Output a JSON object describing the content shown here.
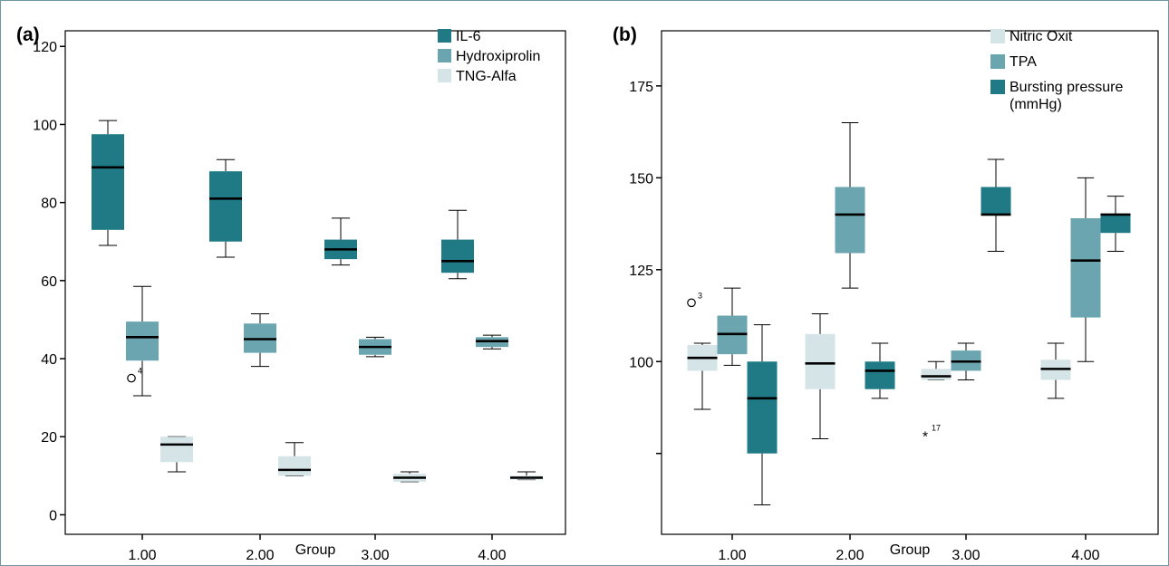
{
  "chart_data": [
    {
      "type": "box",
      "panel_label": "(a)",
      "xlabel": "Group",
      "ylabel": "",
      "ylim": [
        -5,
        124
      ],
      "yticks": [
        0,
        20,
        40,
        60,
        80,
        100,
        120
      ],
      "categories": [
        "1.00",
        "2.00",
        "3.00",
        "4.00"
      ],
      "legend_position": "top-right",
      "series": [
        {
          "name": "IL-6",
          "color": "#1f7a85",
          "boxes": [
            {
              "min": 69,
              "q1": 73,
              "median": 89,
              "q3": 97.5,
              "max": 101
            },
            {
              "min": 66,
              "q1": 70,
              "median": 81,
              "q3": 88,
              "max": 91
            },
            {
              "min": 64,
              "q1": 65.5,
              "median": 68,
              "q3": 70.5,
              "max": 76
            },
            {
              "min": 60.5,
              "q1": 62,
              "median": 65,
              "q3": 70.5,
              "max": 78
            }
          ]
        },
        {
          "name": "Hydroxiprolin",
          "color": "#6ba6b0",
          "boxes": [
            {
              "min": 30.5,
              "q1": 39.5,
              "median": 45.5,
              "q3": 49.5,
              "max": 58.5
            },
            {
              "min": 38,
              "q1": 41.5,
              "median": 45,
              "q3": 49,
              "max": 51.5
            },
            {
              "min": 40.5,
              "q1": 41,
              "median": 43,
              "q3": 45,
              "max": 45.5
            },
            {
              "min": 42.5,
              "q1": 43,
              "median": 44.5,
              "q3": 45.5,
              "max": 46
            }
          ]
        },
        {
          "name": "TNG-Alfa",
          "color": "#d5e4e7",
          "boxes": [
            {
              "min": 11,
              "q1": 13.5,
              "median": 18,
              "q3": 20,
              "max": 20
            },
            {
              "min": 10,
              "q1": 10,
              "median": 11.5,
              "q3": 15,
              "max": 18.5
            },
            {
              "min": 8.5,
              "q1": 8.5,
              "median": 9.5,
              "q3": 10.5,
              "max": 11
            },
            {
              "min": 9,
              "q1": 9,
              "median": 9.5,
              "q3": 10,
              "max": 11
            }
          ]
        }
      ],
      "outliers": [
        {
          "series": "Hydroxiprolin",
          "category": "1.00",
          "value": 35,
          "marker": "circle",
          "label": "4"
        }
      ]
    },
    {
      "type": "box",
      "panel_label": "(b)",
      "xlabel": "Group",
      "ylabel": "",
      "ylim": [
        53,
        190
      ],
      "yticks": [
        75,
        100,
        125,
        150,
        175
      ],
      "ytick_labels": [
        "",
        "100",
        "125",
        "150",
        "175"
      ],
      "categories": [
        "1.00",
        "2.00",
        "3.00",
        "4.00"
      ],
      "legend_position": "top-right",
      "series": [
        {
          "name": "Nitric Oxit",
          "color": "#d5e4e7",
          "boxes": [
            {
              "min": 87,
              "q1": 97.5,
              "median": 101,
              "q3": 104.5,
              "max": 105
            },
            {
              "min": 79,
              "q1": 92.5,
              "median": 99.5,
              "q3": 107.5,
              "max": 113
            },
            {
              "min": 95,
              "q1": 95,
              "median": 96,
              "q3": 98,
              "max": 100
            },
            {
              "min": 90,
              "q1": 95,
              "median": 98,
              "q3": 100.5,
              "max": 105
            }
          ]
        },
        {
          "name": "TPA",
          "color": "#6ba6b0",
          "boxes": [
            {
              "min": 99,
              "q1": 102,
              "median": 107.5,
              "q3": 112.5,
              "max": 120
            },
            {
              "min": 120,
              "q1": 129.5,
              "median": 140,
              "q3": 147.5,
              "max": 165
            },
            {
              "min": 95,
              "q1": 97.5,
              "median": 100,
              "q3": 103,
              "max": 105
            },
            {
              "min": 100,
              "q1": 112,
              "median": 127.5,
              "q3": 139,
              "max": 150
            }
          ]
        },
        {
          "name": "Bursting pressure (mmHg)",
          "color": "#1f7a85",
          "boxes": [
            {
              "min": 61,
              "q1": 75,
              "median": 90,
              "q3": 100,
              "max": 110
            },
            {
              "min": 90,
              "q1": 92.5,
              "median": 97.5,
              "q3": 100,
              "max": 105
            },
            {
              "min": 130,
              "q1": 140,
              "median": 140,
              "q3": 147.5,
              "max": 155
            },
            {
              "min": 130,
              "q1": 135,
              "median": 140,
              "q3": 140,
              "max": 145
            }
          ]
        }
      ],
      "outliers": [
        {
          "series": "Nitric Oxit",
          "category": "1.00",
          "value": 116,
          "marker": "circle",
          "label": "3"
        },
        {
          "series": "Nitric Oxit",
          "category": "3.00",
          "value": 80,
          "marker": "star",
          "label": "17"
        }
      ]
    }
  ]
}
